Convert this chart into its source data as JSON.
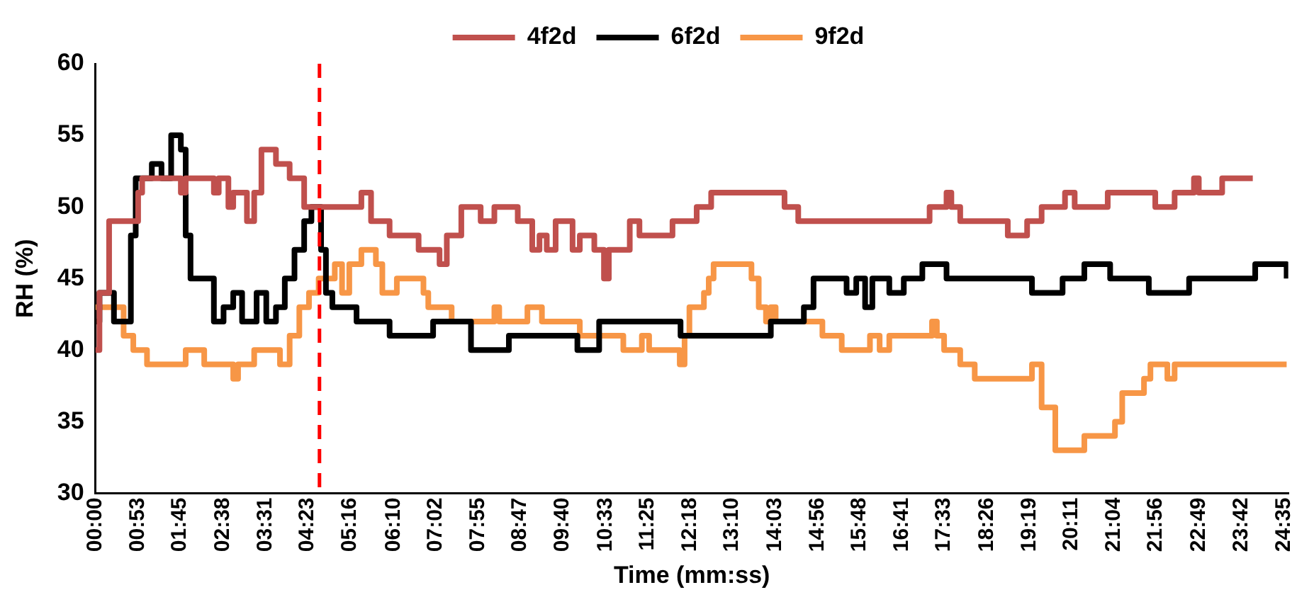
{
  "chart_data": {
    "type": "step",
    "xlabel": "Time (mm:ss)",
    "ylabel": "RH (%)",
    "xlim": [
      0,
      1480
    ],
    "xticks": [
      {
        "value": 0,
        "label": "00:00"
      },
      {
        "value": 53,
        "label": "00:53"
      },
      {
        "value": 105,
        "label": "01:45"
      },
      {
        "value": 158,
        "label": "02:38"
      },
      {
        "value": 211,
        "label": "03:31"
      },
      {
        "value": 263,
        "label": "04:23"
      },
      {
        "value": 316,
        "label": "05:16"
      },
      {
        "value": 370,
        "label": "06:10"
      },
      {
        "value": 422,
        "label": "07:02"
      },
      {
        "value": 475,
        "label": "07:55"
      },
      {
        "value": 527,
        "label": "08:47"
      },
      {
        "value": 580,
        "label": "09:40"
      },
      {
        "value": 633,
        "label": "10:33"
      },
      {
        "value": 685,
        "label": "11:25"
      },
      {
        "value": 738,
        "label": "12:18"
      },
      {
        "value": 790,
        "label": "13:10"
      },
      {
        "value": 843,
        "label": "14:03"
      },
      {
        "value": 896,
        "label": "14:56"
      },
      {
        "value": 948,
        "label": "15:48"
      },
      {
        "value": 1001,
        "label": "16:41"
      },
      {
        "value": 1053,
        "label": "17:33"
      },
      {
        "value": 1106,
        "label": "18:26"
      },
      {
        "value": 1159,
        "label": "19:19"
      },
      {
        "value": 1211,
        "label": "20:11"
      },
      {
        "value": 1264,
        "label": "21:04"
      },
      {
        "value": 1316,
        "label": "21:56"
      },
      {
        "value": 1369,
        "label": "22:49"
      },
      {
        "value": 1422,
        "label": "23:42"
      },
      {
        "value": 1475,
        "label": "24:35"
      }
    ],
    "ylim": [
      30,
      60
    ],
    "yticks": [
      30,
      35,
      40,
      45,
      50,
      55,
      60
    ],
    "grid": false,
    "legend": "top",
    "marker": "none",
    "line_style": "solid",
    "ref_lines": [
      {
        "axis": "x",
        "value": 278,
        "color": "#ff0000",
        "line_style": "dashed"
      }
    ],
    "series": [
      {
        "name": "4f2d",
        "color": "#c0504d",
        "x": [
          0,
          5,
          17,
          53,
          58,
          106,
          112,
          147,
          153,
          165,
          171,
          188,
          197,
          206,
          224,
          241,
          259,
          268,
          330,
          342,
          365,
          401,
          427,
          436,
          454,
          478,
          495,
          524,
          542,
          551,
          560,
          571,
          592,
          601,
          619,
          631,
          637,
          663,
          675,
          716,
          746,
          764,
          855,
          872,
          1035,
          1056,
          1062,
          1073,
          1132,
          1156,
          1174,
          1203,
          1215,
          1256,
          1315,
          1339,
          1363,
          1369,
          1398,
          1436
        ],
        "values": [
          40,
          44,
          49,
          51,
          52,
          51,
          52,
          51,
          52,
          50,
          51,
          49,
          51,
          54,
          53,
          52,
          50,
          50,
          51,
          49,
          48,
          47,
          46,
          48,
          50,
          49,
          50,
          49,
          47,
          48,
          47,
          49,
          47,
          48,
          47,
          45,
          47,
          49,
          48,
          49,
          50,
          51,
          50,
          49,
          50,
          51,
          50,
          49,
          48,
          49,
          50,
          51,
          50,
          51,
          50,
          51,
          52,
          51,
          52,
          52
        ]
      },
      {
        "name": "6f2d",
        "color": "#000000",
        "x": [
          0,
          5,
          23,
          44,
          50,
          58,
          70,
          82,
          94,
          106,
          112,
          118,
          147,
          159,
          171,
          182,
          200,
          212,
          224,
          235,
          247,
          259,
          268,
          280,
          286,
          294,
          324,
          365,
          419,
          466,
          513,
          598,
          625,
          726,
          838,
          879,
          891,
          932,
          944,
          955,
          964,
          985,
          1003,
          1026,
          1056,
          1162,
          1200,
          1227,
          1259,
          1307,
          1357,
          1439,
          1478
        ],
        "values": [
          42,
          44,
          42,
          48,
          52,
          52,
          53,
          52,
          55,
          54,
          48,
          45,
          42,
          43,
          44,
          42,
          44,
          42,
          43,
          45,
          47,
          49,
          50,
          47,
          44,
          43,
          42,
          41,
          42,
          40,
          41,
          40,
          42,
          41,
          42,
          43,
          45,
          44,
          45,
          43,
          45,
          44,
          45,
          46,
          45,
          44,
          45,
          46,
          45,
          44,
          45,
          46,
          45
        ]
      },
      {
        "name": "9f2d",
        "color": "#f79646",
        "x": [
          0,
          35,
          47,
          64,
          112,
          135,
          171,
          177,
          197,
          229,
          241,
          253,
          265,
          277,
          297,
          306,
          315,
          330,
          348,
          356,
          374,
          407,
          413,
          442,
          495,
          501,
          536,
          554,
          601,
          655,
          678,
          687,
          725,
          731,
          737,
          755,
          761,
          767,
          814,
          823,
          832,
          838,
          844,
          902,
          926,
          961,
          973,
          985,
          1003,
          1038,
          1044,
          1053,
          1073,
          1091,
          1162,
          1174,
          1191,
          1227,
          1265,
          1274,
          1301,
          1309,
          1330,
          1339,
          1478
        ],
        "values": [
          43,
          41,
          40,
          39,
          40,
          39,
          38,
          39,
          40,
          39,
          41,
          43,
          44,
          45,
          46,
          44,
          46,
          47,
          46,
          44,
          45,
          44,
          43,
          42,
          43,
          42,
          43,
          42,
          41,
          40,
          41,
          40,
          39,
          41,
          43,
          44,
          45,
          46,
          45,
          43,
          42,
          43,
          42,
          41,
          40,
          41,
          40,
          41,
          41,
          42,
          41,
          40,
          39,
          38,
          39,
          36,
          33,
          34,
          35,
          37,
          38,
          39,
          38,
          39,
          39
        ]
      }
    ]
  }
}
